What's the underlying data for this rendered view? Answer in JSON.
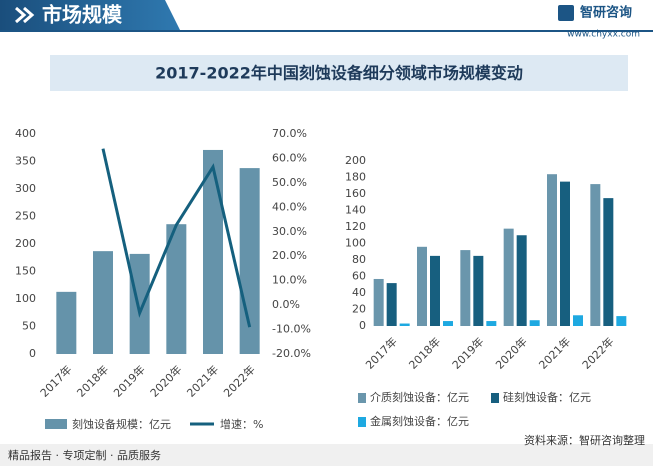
{
  "header": {
    "section": "市场规模",
    "brand": "智研咨询",
    "site": "www.chyxx.com"
  },
  "title": "2017-2022年中国刻蚀设备细分领域市场规模变动",
  "footer": {
    "slogan": "精品报告 · 专项定制 · 品质服务",
    "source": "资料来源：智研咨询整理"
  },
  "chart_data": [
    {
      "type": "bar-line",
      "categories": [
        "2017年",
        "2018年",
        "2019年",
        "2020年",
        "2021年",
        "2022年"
      ],
      "series": [
        {
          "name": "刻蚀设备规模：亿元",
          "color": "#6593aa",
          "type": "bar",
          "values": [
            113,
            187,
            182,
            236,
            371,
            338
          ]
        },
        {
          "name": "增速：%",
          "color": "#15607e",
          "type": "line",
          "axis": "y2",
          "values": [
            null,
            64,
            -3.2,
            32.8,
            56.5,
            -9
          ]
        }
      ],
      "ylim": [
        0,
        400
      ],
      "yticks": [
        0,
        50,
        100,
        150,
        200,
        250,
        300,
        350,
        400
      ],
      "y2lim": [
        -20,
        70
      ],
      "y2ticks": [
        {
          "value": -20,
          "label": "-20.0%"
        },
        {
          "value": -10,
          "label": "-10.0%"
        },
        {
          "value": 0,
          "label": "0.0%"
        },
        {
          "value": 10,
          "label": "10.0%"
        },
        {
          "value": 20,
          "label": "20.0%"
        },
        {
          "value": 30,
          "label": "30.0%"
        },
        {
          "value": 40,
          "label": "40.0%"
        },
        {
          "value": 50,
          "label": "50.0%"
        },
        {
          "value": 60,
          "label": "60.0%"
        },
        {
          "value": 70,
          "label": "70.0%"
        }
      ]
    },
    {
      "type": "bar",
      "categories": [
        "2017年",
        "2018年",
        "2019年",
        "2020年",
        "2021年",
        "2022年"
      ],
      "series": [
        {
          "name": "介质刻蚀设备：亿元",
          "color": "#6a96ac",
          "values": [
            57,
            96,
            92,
            118,
            184,
            172
          ]
        },
        {
          "name": "硅刻蚀设备：亿元",
          "color": "#175f7f",
          "values": [
            52,
            85,
            85,
            110,
            175,
            155
          ]
        },
        {
          "name": "金属刻蚀设备：亿元",
          "color": "#1ea9e1",
          "values": [
            3,
            6,
            6,
            7,
            13,
            12
          ]
        }
      ],
      "ylim": [
        0,
        200
      ],
      "yticks": [
        0,
        20,
        40,
        60,
        80,
        100,
        120,
        140,
        160,
        180,
        200
      ]
    }
  ]
}
